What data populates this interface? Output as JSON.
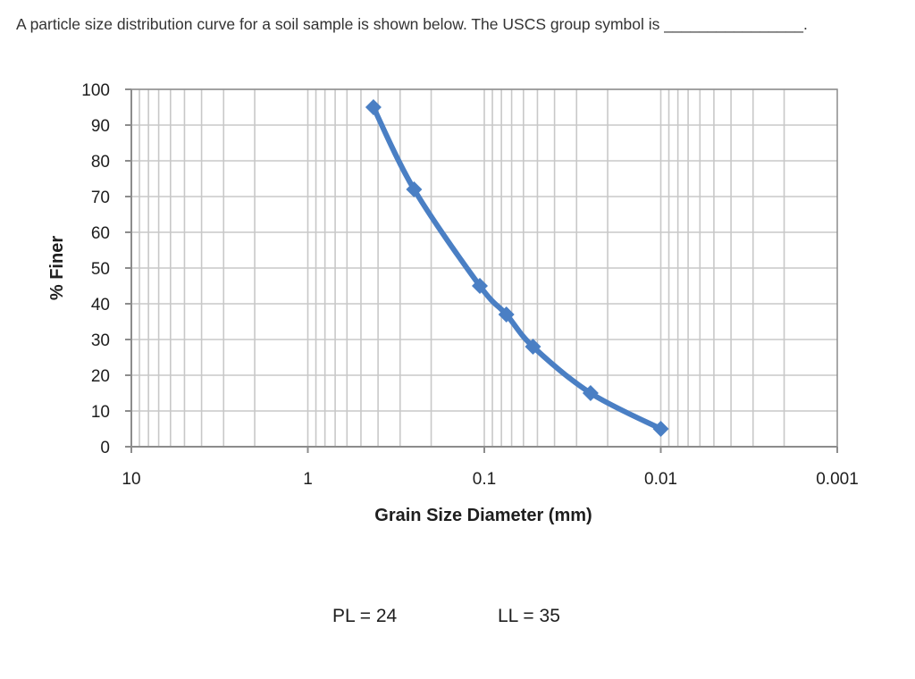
{
  "question": {
    "text": "A particle size distribution curve for a soil sample is shown below.  The USCS group symbol is ________________."
  },
  "chart_data": {
    "type": "line",
    "xlabel": "Grain Size Diameter (mm)",
    "ylabel": "% Finer",
    "x_scale": "log",
    "x_reversed": true,
    "xlim": [
      10,
      0.001
    ],
    "ylim": [
      0,
      100
    ],
    "x_ticks": [
      "10",
      "1",
      "0.1",
      "0.01",
      "0.001"
    ],
    "y_ticks": [
      "0",
      "10",
      "20",
      "30",
      "40",
      "50",
      "60",
      "70",
      "80",
      "90",
      "100"
    ],
    "grid": true,
    "series": [
      {
        "x": [
          0.425,
          0.25,
          0.106,
          0.075,
          0.053,
          0.025,
          0.01
        ],
        "y": [
          95,
          72,
          45,
          37,
          28,
          15,
          5
        ],
        "color": "#4a7fc4",
        "marker": "diamond"
      }
    ]
  },
  "notes": {
    "pl": "PL = 24",
    "ll": "LL = 35"
  },
  "colors": {
    "series": "#4a7fc4",
    "grid": "#c8c8c8",
    "axis": "#8c8c8c"
  }
}
